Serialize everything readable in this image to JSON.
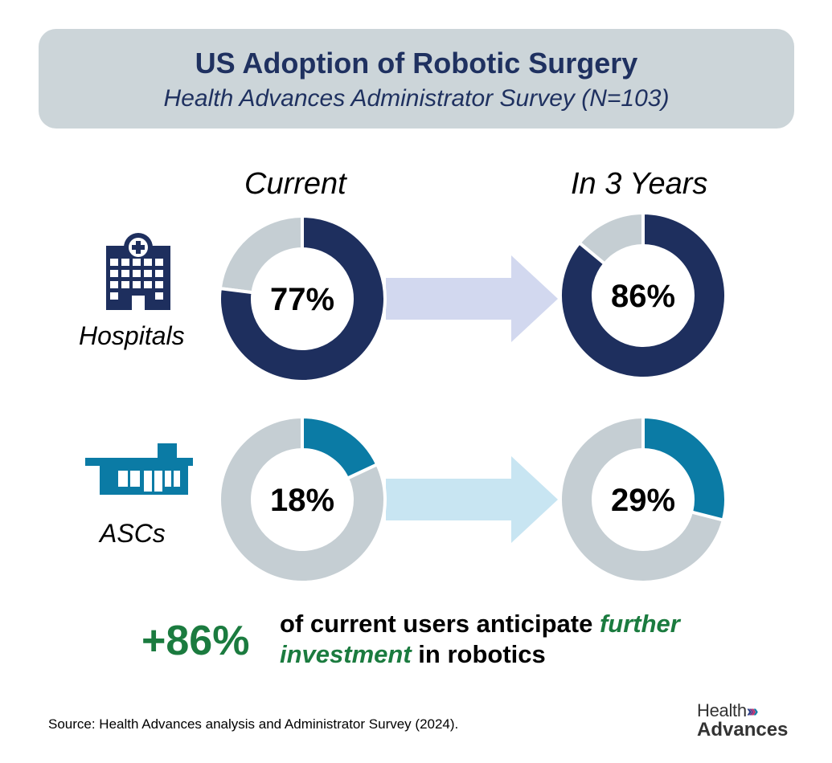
{
  "title": "US Adoption of Robotic Surgery",
  "subtitle": "Health Advances Administrator Survey (N=103)",
  "columns": {
    "current": "Current",
    "future": "In 3 Years"
  },
  "rows": {
    "hospitals": "Hospitals",
    "ascs": "ASCs"
  },
  "note": {
    "value": "+86%",
    "text_before": "of current users anticipate",
    "text_emphasis_1": "further",
    "text_emphasis_2": "investment",
    "text_after": "in robotics"
  },
  "source": "Source:  Health Advances analysis and Administrator Survey (2024).",
  "logo": {
    "line1": "Health",
    "line2": "Advances",
    "mark": "»»"
  },
  "colors": {
    "hospital": "#1e2f5e",
    "asc": "#0b7ba5",
    "remainder": "#c5ced3",
    "hospital_arrow": "#d2d8ef",
    "asc_arrow": "#c8e5f2",
    "accent_green": "#1b7b3f",
    "title_bg": "#ccd5d9"
  },
  "chart_data": {
    "type": "pie",
    "variant": "donut",
    "series": [
      {
        "name": "Hospitals",
        "categories": [
          "Current",
          "In 3 Years"
        ],
        "values": [
          77,
          86
        ],
        "labels": [
          "77%",
          "86%"
        ],
        "unit": "%"
      },
      {
        "name": "ASCs",
        "categories": [
          "Current",
          "In 3 Years"
        ],
        "values": [
          18,
          29
        ],
        "labels": [
          "18%",
          "29%"
        ],
        "unit": "%"
      }
    ]
  }
}
